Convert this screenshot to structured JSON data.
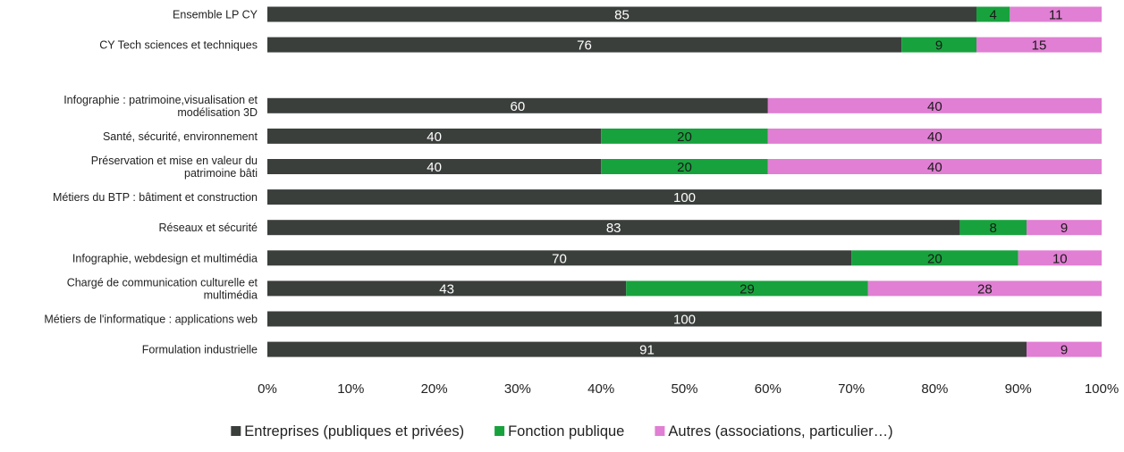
{
  "chart_data": {
    "type": "bar",
    "orientation": "horizontal",
    "stacked": true,
    "percent": true,
    "categories": [
      [
        "Ensemble LP CY"
      ],
      [
        "CY Tech sciences et techniques"
      ],
      [],
      [
        "Infographie : patrimoine,visualisation et",
        "modélisation 3D"
      ],
      [
        "Santé, sécurité, environnement"
      ],
      [
        "Préservation et mise en valeur du",
        "patrimoine bâti"
      ],
      [
        "Métiers du BTP : bâtiment et construction"
      ],
      [
        "Réseaux et sécurité"
      ],
      [
        "Infographie, webdesign et multimédia"
      ],
      [
        "Chargé de communication culturelle et",
        "multimédia"
      ],
      [
        "Métiers de l'informatique : applications web"
      ],
      [
        "Formulation industrielle"
      ]
    ],
    "series": [
      {
        "name": "Entreprises (publiques et privées)",
        "color": "#3b3f3c",
        "label_color": "#ffffff",
        "values": [
          85,
          76,
          null,
          60,
          40,
          40,
          100,
          83,
          70,
          43,
          100,
          91
        ]
      },
      {
        "name": "Fonction publique",
        "color": "#18a23d",
        "label_color": "#1a1a1a",
        "values": [
          4,
          9,
          null,
          0,
          20,
          20,
          0,
          8,
          20,
          29,
          0,
          0
        ]
      },
      {
        "name": "Autres (associations, particulier…)",
        "color": "#e07fd3",
        "label_color": "#1a1a1a",
        "values": [
          11,
          15,
          null,
          40,
          40,
          40,
          0,
          9,
          10,
          28,
          0,
          9
        ]
      }
    ],
    "xlim": [
      0,
      100
    ],
    "xticks": [
      0,
      10,
      20,
      30,
      40,
      50,
      60,
      70,
      80,
      90,
      100
    ],
    "xtick_suffix": "%",
    "title": "",
    "xlabel": "",
    "ylabel": "",
    "grid": false,
    "legend_position": "bottom"
  }
}
